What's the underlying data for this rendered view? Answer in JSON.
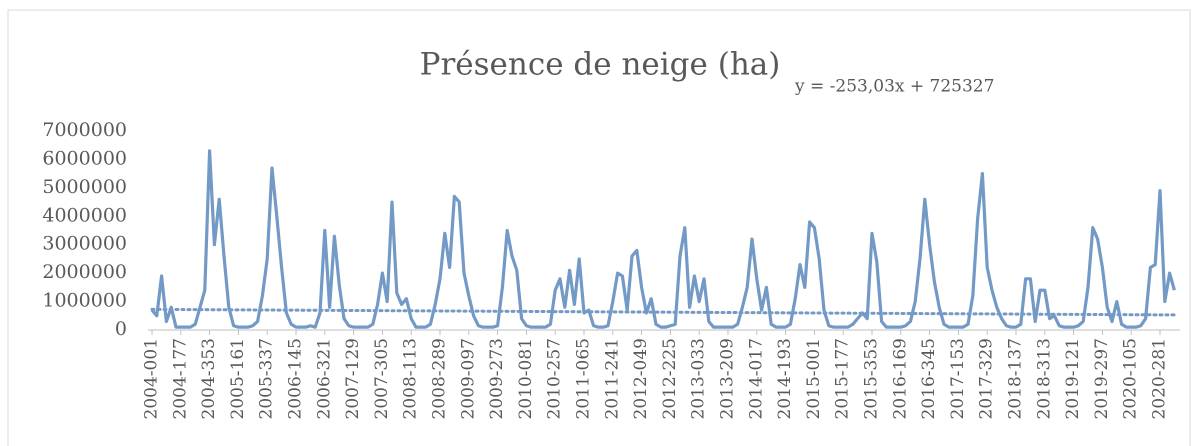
{
  "chart_data": {
    "type": "line",
    "title": "Présence de neige (ha)",
    "annotation": "y = -253,03x + 725327",
    "categories": [
      "2004-001",
      null,
      null,
      null,
      null,
      null,
      "2004-177",
      null,
      null,
      null,
      null,
      null,
      "2004-353",
      null,
      null,
      null,
      null,
      null,
      "2005-161",
      null,
      null,
      null,
      null,
      null,
      "2005-337",
      null,
      null,
      null,
      null,
      null,
      "2006-145",
      null,
      null,
      null,
      null,
      null,
      "2006-321",
      null,
      null,
      null,
      null,
      null,
      "2007-129",
      null,
      null,
      null,
      null,
      null,
      "2007-305",
      null,
      null,
      null,
      null,
      null,
      "2008-113",
      null,
      null,
      null,
      null,
      null,
      "2008-289",
      null,
      null,
      null,
      null,
      null,
      "2009-097",
      null,
      null,
      null,
      null,
      null,
      "2009-273",
      null,
      null,
      null,
      null,
      null,
      "2010-081",
      null,
      null,
      null,
      null,
      null,
      "2010-257",
      null,
      null,
      null,
      null,
      null,
      "2011-065",
      null,
      null,
      null,
      null,
      null,
      "2011-241",
      null,
      null,
      null,
      null,
      null,
      "2012-049",
      null,
      null,
      null,
      null,
      null,
      "2012-225",
      null,
      null,
      null,
      null,
      null,
      "2013-033",
      null,
      null,
      null,
      null,
      null,
      "2013-209",
      null,
      null,
      null,
      null,
      null,
      "2014-017",
      null,
      null,
      null,
      null,
      null,
      "2014-193",
      null,
      null,
      null,
      null,
      null,
      "2015-001",
      null,
      null,
      null,
      null,
      null,
      "2015-177",
      null,
      null,
      null,
      null,
      null,
      "2015-353",
      null,
      null,
      null,
      null,
      null,
      "2016-169",
      null,
      null,
      null,
      null,
      null,
      "2016-345",
      null,
      null,
      null,
      null,
      null,
      "2017-153",
      null,
      null,
      null,
      null,
      null,
      "2017-329",
      null,
      null,
      null,
      null,
      null,
      "2018-137",
      null,
      null,
      null,
      null,
      null,
      "2018-313",
      null,
      null,
      null,
      null,
      null,
      "2019-121",
      null,
      null,
      null,
      null,
      null,
      "2019-297",
      null,
      null,
      null,
      null,
      null,
      "2020-105",
      null,
      null,
      null,
      null,
      null,
      "2020-281",
      null,
      null,
      null
    ],
    "series": [
      {
        "name": "Présence de neige (ha)",
        "color": "#7399c6",
        "values": [
          700000,
          500000,
          1900000,
          300000,
          800000,
          100000,
          100000,
          100000,
          100000,
          200000,
          800000,
          1400000,
          6300000,
          3000000,
          4600000,
          2600000,
          800000,
          150000,
          100000,
          100000,
          100000,
          150000,
          300000,
          1200000,
          2500000,
          5700000,
          4000000,
          2200000,
          600000,
          200000,
          100000,
          100000,
          100000,
          150000,
          100000,
          600000,
          3500000,
          800000,
          3300000,
          1600000,
          400000,
          150000,
          100000,
          100000,
          100000,
          100000,
          200000,
          900000,
          2000000,
          1000000,
          4500000,
          1300000,
          900000,
          1100000,
          400000,
          100000,
          100000,
          100000,
          200000,
          900000,
          1800000,
          3400000,
          2200000,
          4700000,
          4500000,
          2000000,
          1200000,
          500000,
          150000,
          100000,
          100000,
          100000,
          150000,
          1500000,
          3500000,
          2600000,
          2100000,
          400000,
          150000,
          100000,
          100000,
          100000,
          100000,
          200000,
          1400000,
          1800000,
          800000,
          2100000,
          900000,
          2500000,
          600000,
          700000,
          150000,
          100000,
          100000,
          150000,
          1000000,
          2000000,
          1900000,
          700000,
          2600000,
          2800000,
          1500000,
          600000,
          1100000,
          200000,
          100000,
          100000,
          150000,
          200000,
          2600000,
          3600000,
          800000,
          1900000,
          1000000,
          1800000,
          300000,
          100000,
          100000,
          100000,
          100000,
          100000,
          200000,
          800000,
          1500000,
          3200000,
          1800000,
          700000,
          1500000,
          200000,
          100000,
          100000,
          100000,
          200000,
          1100000,
          2300000,
          1500000,
          3800000,
          3600000,
          2500000,
          700000,
          150000,
          100000,
          100000,
          100000,
          100000,
          200000,
          400000,
          600000,
          400000,
          3400000,
          2400000,
          300000,
          100000,
          100000,
          100000,
          100000,
          150000,
          300000,
          1000000,
          2500000,
          4600000,
          3000000,
          1700000,
          800000,
          200000,
          100000,
          100000,
          100000,
          100000,
          200000,
          1200000,
          3900000,
          5500000,
          2200000,
          1400000,
          800000,
          400000,
          150000,
          100000,
          100000,
          200000,
          1800000,
          1800000,
          300000,
          1400000,
          1400000,
          400000,
          500000,
          150000,
          100000,
          100000,
          100000,
          150000,
          300000,
          1500000,
          3600000,
          3200000,
          2200000,
          800000,
          300000,
          1000000,
          200000,
          100000,
          100000,
          100000,
          150000,
          400000,
          2200000,
          2300000,
          4900000,
          1000000,
          2000000,
          1400000
        ]
      }
    ],
    "trendline": {
      "values": [
        725000,
        530000
      ],
      "color": "#7399c6"
    },
    "ylim": [
      0,
      7000000
    ],
    "yticks": [
      0,
      1000000,
      2000000,
      3000000,
      4000000,
      5000000,
      6000000,
      7000000
    ],
    "grid": false
  }
}
